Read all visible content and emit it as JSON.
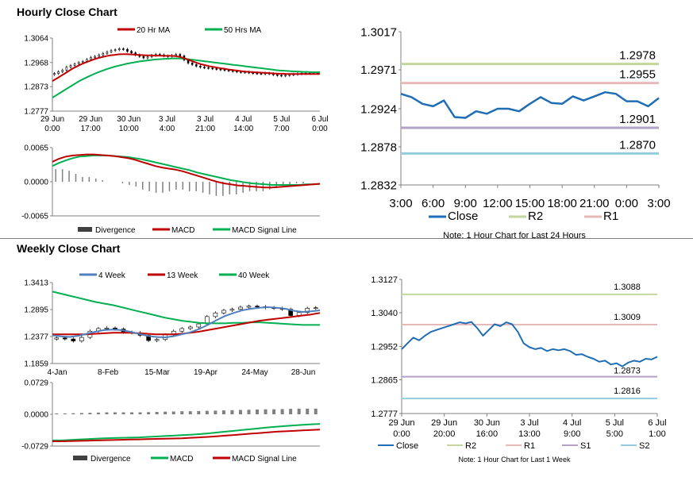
{
  "sections": {
    "hourly_title": "Hourly Close Chart",
    "weekly_title": "Weekly Close Chart"
  },
  "colors": {
    "red": "#c00000",
    "green": "#00b050",
    "blue": "#4f81bd",
    "close_blue": "#1f6eb5",
    "r2_green": "#c3d69b",
    "r1_pink": "#e6b9b8",
    "s1_purple": "#b3a2c7",
    "s2_blue": "#93cddd",
    "grey": "#808080",
    "dark": "#404040"
  },
  "chart_data": [
    {
      "id": "hourly_price",
      "type": "candlestick",
      "x_tick_labels": [
        [
          "29 Jun",
          "0:00"
        ],
        [
          "29 Jun",
          "17:00"
        ],
        [
          "30 Jun",
          "10:00"
        ],
        [
          "3 Jul",
          "4:00"
        ],
        [
          "3 Jul",
          "21:00"
        ],
        [
          "4 Jul",
          "14:00"
        ],
        [
          "5 Jul",
          "7:00"
        ],
        [
          "6 Jul",
          "0:00"
        ]
      ],
      "y_ticks": [
        "1.3064",
        "1.2968",
        "1.2873",
        "1.2777"
      ],
      "ylim": [
        1.2777,
        1.3064
      ],
      "legend": [
        "20 Hr MA",
        "50 Hrs MA"
      ],
      "close": [
        1.2925,
        1.2932,
        1.2938,
        1.295,
        1.2956,
        1.2962,
        1.2968,
        1.2972,
        1.298,
        1.2988,
        1.2992,
        1.2998,
        1.3004,
        1.301,
        1.3015,
        1.3018,
        1.3022,
        1.302,
        1.3012,
        1.3006,
        1.2998,
        1.2992,
        1.2986,
        1.299,
        1.2996,
        1.3,
        1.2998,
        1.2994,
        1.2992,
        1.2996,
        1.3,
        1.2994,
        1.2978,
        1.2966,
        1.296,
        1.2954,
        1.295,
        1.2948,
        1.2946,
        1.2944,
        1.2942,
        1.294,
        1.2938,
        1.2936,
        1.2934,
        1.2932,
        1.293,
        1.293,
        1.2928,
        1.2926,
        1.2925,
        1.2924,
        1.2926,
        1.2924,
        1.292,
        1.2918,
        1.2916,
        1.2918,
        1.292,
        1.2922,
        1.2924,
        1.2926,
        1.2925,
        1.2926,
        1.2927,
        1.2926
      ],
      "ma20": [
        1.2895,
        1.2905,
        1.2915,
        1.2925,
        1.2935,
        1.2945,
        1.2953,
        1.2961,
        1.2968,
        1.2974,
        1.298,
        1.2985,
        1.2989,
        1.2993,
        1.2996,
        1.2998,
        1.3,
        1.3001,
        1.3001,
        1.3,
        1.2999,
        1.2998,
        1.2997,
        1.2996,
        1.2996,
        1.2995,
        1.2995,
        1.2994,
        1.2994,
        1.2994,
        1.2993,
        1.299,
        1.2985,
        1.2979,
        1.2973,
        1.2967,
        1.2962,
        1.2958,
        1.2954,
        1.2951,
        1.2948,
        1.2945,
        1.2943,
        1.294,
        1.2938,
        1.2936,
        1.2934,
        1.2932,
        1.2931,
        1.293,
        1.2929,
        1.2928,
        1.2927,
        1.2926,
        1.2925,
        1.2924,
        1.2924,
        1.2923,
        1.2923,
        1.2923,
        1.2923,
        1.2923,
        1.2923,
        1.2923,
        1.2923,
        1.2923
      ],
      "ma50": [
        1.283,
        1.284,
        1.285,
        1.286,
        1.287,
        1.288,
        1.289,
        1.2899,
        1.2907,
        1.2915,
        1.2922,
        1.2929,
        1.2935,
        1.2941,
        1.2946,
        1.2951,
        1.2955,
        1.2959,
        1.2963,
        1.2966,
        1.2969,
        1.2972,
        1.2974,
        1.2976,
        1.2978,
        1.298,
        1.2981,
        1.2982,
        1.2983,
        1.2984,
        1.2984,
        1.2984,
        1.2983,
        1.2981,
        1.2979,
        1.2977,
        1.2975,
        1.2973,
        1.2971,
        1.2969,
        1.2967,
        1.2965,
        1.2963,
        1.2961,
        1.2959,
        1.2957,
        1.2955,
        1.2953,
        1.2951,
        1.2949,
        1.2947,
        1.2945,
        1.2943,
        1.2941,
        1.2939,
        1.2937,
        1.2936,
        1.2935,
        1.2934,
        1.2933,
        1.2932,
        1.2931,
        1.2931,
        1.293,
        1.293,
        1.293
      ]
    },
    {
      "id": "hourly_macd",
      "type": "line",
      "y_ticks": [
        "0.0065",
        "0.0000",
        "-0.0065"
      ],
      "ylim": [
        -0.0065,
        0.0065
      ],
      "legend": [
        "Divergence",
        "MACD",
        "MACD Signal Line"
      ],
      "macd": [
        0.0038,
        0.0044,
        0.0048,
        0.005,
        0.0051,
        0.0052,
        0.0052,
        0.0051,
        0.005,
        0.0049,
        0.0047,
        0.0045,
        0.0042,
        0.0038,
        0.0034,
        0.003,
        0.0027,
        0.0025,
        0.0023,
        0.002,
        0.0016,
        0.0012,
        0.0008,
        0.0004,
        0.0,
        -0.0003,
        -0.0005,
        -0.0007,
        -0.0008,
        -0.0009,
        -0.001,
        -0.0011,
        -0.0011,
        -0.001,
        -0.0009,
        -0.0008,
        -0.0007,
        -0.0006,
        -0.0005,
        -0.0004
      ],
      "signal": [
        0.003,
        0.0036,
        0.0041,
        0.0045,
        0.0048,
        0.0049,
        0.005,
        0.005,
        0.005,
        0.0049,
        0.0048,
        0.0047,
        0.0045,
        0.0043,
        0.004,
        0.0037,
        0.0034,
        0.0031,
        0.0028,
        0.0025,
        0.0022,
        0.0018,
        0.0015,
        0.0012,
        0.0009,
        0.0006,
        0.0003,
        0.0001,
        -0.0001,
        -0.0003,
        -0.0004,
        -0.0005,
        -0.0006,
        -0.0006,
        -0.0006,
        -0.0006,
        -0.0006,
        -0.0005,
        -0.0005,
        -0.0004
      ]
    },
    {
      "id": "hourly_24h",
      "type": "line",
      "x_tick_labels": [
        "3:00",
        "6:00",
        "9:00",
        "12:00",
        "15:00",
        "18:00",
        "21:00",
        "0:00",
        "3:00"
      ],
      "y_ticks": [
        "1.3017",
        "1.2971",
        "1.2924",
        "1.2878",
        "1.2832"
      ],
      "ylim": [
        1.2832,
        1.3017
      ],
      "legend": [
        "Close",
        "R2",
        "R1"
      ],
      "levels": [
        {
          "name": "R2",
          "value": 1.2978,
          "label": "1.2978"
        },
        {
          "name": "R1",
          "value": 1.2955,
          "label": "1.2955"
        },
        {
          "name": "S1",
          "value": 1.2901,
          "label": "1.2901"
        },
        {
          "name": "S2",
          "value": 1.287,
          "label": "1.2870"
        }
      ],
      "close": [
        1.2942,
        1.2938,
        1.293,
        1.2927,
        1.2934,
        1.2914,
        1.2913,
        1.2921,
        1.2918,
        1.2924,
        1.2924,
        1.2921,
        1.293,
        1.2938,
        1.2931,
        1.293,
        1.2939,
        1.2934,
        1.2939,
        1.2944,
        1.2942,
        1.2933,
        1.2933,
        1.2927,
        1.2937
      ],
      "note": "Note: 1 Hour Chart for Last 24 Hours"
    },
    {
      "id": "weekly_price",
      "type": "candlestick",
      "x_tick_labels": [
        "4-Jan",
        "8-Feb",
        "15-Mar",
        "19-Apr",
        "24-May",
        "28-Jun"
      ],
      "y_ticks": [
        "1.3413",
        "1.2895",
        "1.2377",
        "1.1859"
      ],
      "ylim": [
        1.1859,
        1.3413
      ],
      "legend": [
        "4 Week",
        "13 Week",
        "40 Week"
      ],
      "close": [
        1.235,
        1.233,
        1.229,
        1.236,
        1.248,
        1.253,
        1.254,
        1.252,
        1.246,
        1.245,
        1.24,
        1.23,
        1.232,
        1.241,
        1.248,
        1.253,
        1.256,
        1.262,
        1.276,
        1.283,
        1.288,
        1.29,
        1.294,
        1.296,
        1.295,
        1.293,
        1.292,
        1.29,
        1.278,
        1.284,
        1.292,
        1.293
      ],
      "wk4": [
        1.24,
        1.238,
        1.237,
        1.239,
        1.243,
        1.247,
        1.25,
        1.251,
        1.25,
        1.247,
        1.243,
        1.239,
        1.237,
        1.236,
        1.238,
        1.242,
        1.246,
        1.252,
        1.26,
        1.269,
        1.277,
        1.283,
        1.288,
        1.291,
        1.293,
        1.294,
        1.293,
        1.291,
        1.287,
        1.285,
        1.286,
        1.288
      ],
      "wk13": [
        1.242,
        1.242,
        1.242,
        1.242,
        1.242,
        1.243,
        1.244,
        1.245,
        1.245,
        1.245,
        1.244,
        1.243,
        1.242,
        1.242,
        1.242,
        1.243,
        1.245,
        1.247,
        1.25,
        1.253,
        1.256,
        1.259,
        1.262,
        1.265,
        1.268,
        1.27,
        1.272,
        1.274,
        1.276,
        1.278,
        1.28,
        1.283
      ],
      "wk40": [
        1.324,
        1.32,
        1.316,
        1.312,
        1.308,
        1.304,
        1.301,
        1.298,
        1.294,
        1.29,
        1.286,
        1.282,
        1.278,
        1.274,
        1.271,
        1.268,
        1.266,
        1.264,
        1.263,
        1.263,
        1.263,
        1.264,
        1.264,
        1.265,
        1.265,
        1.264,
        1.263,
        1.262,
        1.261,
        1.26,
        1.26,
        1.26
      ]
    },
    {
      "id": "weekly_macd",
      "type": "line",
      "y_ticks": [
        "0.0729",
        "0.0000",
        "-0.0729"
      ],
      "ylim": [
        -0.0729,
        0.0729
      ],
      "legend": [
        "Divergence",
        "MACD",
        "MACD Signal Line"
      ],
      "macd": [
        -0.06,
        -0.06,
        -0.059,
        -0.058,
        -0.057,
        -0.056,
        -0.055,
        -0.0545,
        -0.054,
        -0.0535,
        -0.053,
        -0.052,
        -0.051,
        -0.05,
        -0.049,
        -0.048,
        -0.047,
        -0.0455,
        -0.044,
        -0.042,
        -0.04,
        -0.038,
        -0.036,
        -0.034,
        -0.032,
        -0.03,
        -0.0285,
        -0.027,
        -0.0255,
        -0.024,
        -0.023,
        -0.022
      ],
      "signal": [
        -0.062,
        -0.062,
        -0.0615,
        -0.061,
        -0.0605,
        -0.06,
        -0.0595,
        -0.059,
        -0.0585,
        -0.058,
        -0.0575,
        -0.057,
        -0.0565,
        -0.056,
        -0.0555,
        -0.055,
        -0.054,
        -0.053,
        -0.052,
        -0.0505,
        -0.049,
        -0.0475,
        -0.046,
        -0.0445,
        -0.043,
        -0.0415,
        -0.04,
        -0.039,
        -0.038,
        -0.037,
        -0.036,
        -0.035
      ],
      "divergence": [
        0.002,
        0.002,
        0.0025,
        0.003,
        0.0035,
        0.004,
        0.0045,
        0.0045,
        0.0045,
        0.0045,
        0.0045,
        0.005,
        0.0055,
        0.006,
        0.0065,
        0.007,
        0.007,
        0.0075,
        0.008,
        0.0085,
        0.009,
        0.0095,
        0.01,
        0.0105,
        0.011,
        0.0115,
        0.0115,
        0.012,
        0.0125,
        0.013,
        0.013,
        0.013
      ]
    },
    {
      "id": "weekly_1w",
      "type": "line",
      "x_tick_labels": [
        [
          "29 Jun",
          "0:00"
        ],
        [
          "29 Jun",
          "20:00"
        ],
        [
          "30 Jun",
          "16:00"
        ],
        [
          "3 Jul",
          "13:00"
        ],
        [
          "4 Jul",
          "9:00"
        ],
        [
          "5 Jul",
          "5:00"
        ],
        [
          "6 Jul",
          "1:00"
        ]
      ],
      "y_ticks": [
        "1.3127",
        "1.3040",
        "1.2952",
        "1.2865",
        "1.2777"
      ],
      "ylim": [
        1.2777,
        1.3127
      ],
      "legend": [
        "Close",
        "R2",
        "R1",
        "S1",
        "S2"
      ],
      "levels": [
        {
          "name": "R2",
          "value": 1.3088,
          "label": "1.3088"
        },
        {
          "name": "R1",
          "value": 1.3009,
          "label": "1.3009"
        },
        {
          "name": "S1",
          "value": 1.2873,
          "label": "1.2873"
        },
        {
          "name": "S2",
          "value": 1.2816,
          "label": "1.2816"
        }
      ],
      "close": [
        1.2945,
        1.296,
        1.2975,
        1.2968,
        1.298,
        1.299,
        1.2995,
        1.3,
        1.3005,
        1.301,
        1.3015,
        1.3012,
        1.3016,
        1.3,
        1.298,
        1.2995,
        1.301,
        1.3005,
        1.3015,
        1.301,
        1.299,
        1.296,
        1.295,
        1.2945,
        1.2948,
        1.294,
        1.2945,
        1.2942,
        1.2945,
        1.294,
        1.293,
        1.2932,
        1.2925,
        1.292,
        1.2912,
        1.2915,
        1.2905,
        1.2908,
        1.29,
        1.291,
        1.2915,
        1.2912,
        1.292,
        1.2918,
        1.2925
      ],
      "note": "Note: 1 Hour Chart for Last 1 Week"
    }
  ]
}
